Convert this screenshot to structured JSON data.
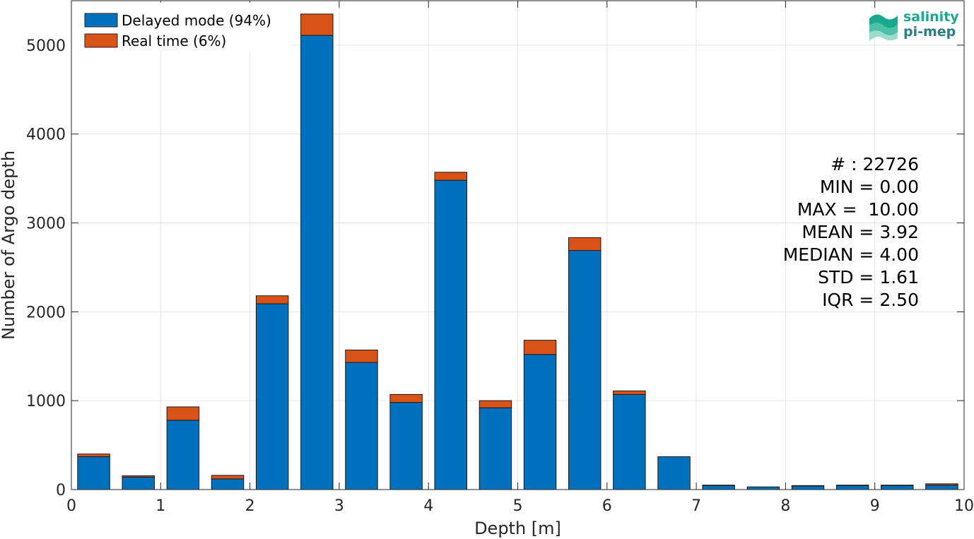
{
  "chart_data": {
    "type": "bar",
    "stacked": true,
    "xlabel": "Depth [m]",
    "ylabel": "Number of Argo depth",
    "xlim": [
      0,
      10
    ],
    "ylim": [
      0,
      5500
    ],
    "xticks": [
      0,
      1,
      2,
      3,
      4,
      5,
      6,
      7,
      8,
      9,
      10
    ],
    "yticks": [
      0,
      1000,
      2000,
      3000,
      4000,
      5000
    ],
    "grid": true,
    "legend_position": "top-left",
    "bin_centers": [
      0.25,
      0.75,
      1.25,
      1.75,
      2.25,
      2.75,
      3.25,
      3.75,
      4.25,
      4.75,
      5.25,
      5.75,
      6.25,
      6.75,
      7.25,
      7.75,
      8.25,
      8.75,
      9.25,
      9.75
    ],
    "series": [
      {
        "name": "Delayed mode (94%)",
        "color": "#0072bd",
        "values": [
          370,
          140,
          780,
          120,
          2090,
          5110,
          1430,
          980,
          3480,
          920,
          1520,
          2690,
          1070,
          370,
          45,
          30,
          40,
          45,
          45,
          50
        ]
      },
      {
        "name": "Real time (6%)",
        "color": "#d95319",
        "values": [
          30,
          15,
          150,
          40,
          90,
          240,
          140,
          90,
          90,
          80,
          160,
          145,
          40,
          0,
          5,
          0,
          5,
          5,
          5,
          15
        ]
      }
    ]
  },
  "stats": {
    "count": "# : 22726",
    "min": "MIN = 0.00",
    "max": "MAX =  10.00",
    "mean": "MEAN = 3.92",
    "median": "MEDIAN = 4.00",
    "std": "STD = 1.61",
    "iqr": "IQR = 2.50"
  },
  "logo": {
    "line1": "salinity",
    "line2": "pi-mep"
  },
  "colors": {
    "delayed": "#0072bd",
    "realtime": "#d95319",
    "logo_teal": "#1aa88e"
  }
}
